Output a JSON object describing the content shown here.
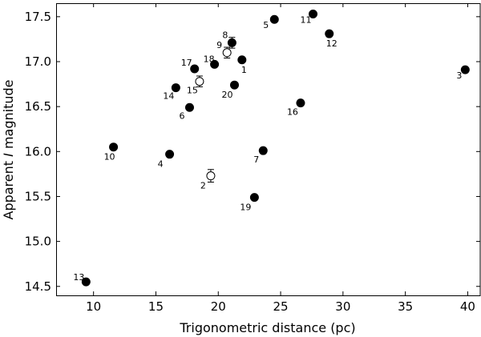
{
  "chart_data": {
    "type": "scatter",
    "xlabel": "Trigonometric distance (pc)",
    "ylabel_prefix": "Apparent ",
    "ylabel_var": "I",
    "ylabel_suffix": " magnitude",
    "xlim": [
      7,
      41
    ],
    "ylim": [
      14.4,
      17.65
    ],
    "xticks": [
      10,
      15,
      20,
      25,
      30,
      35,
      40
    ],
    "yticks": [
      14.5,
      15.0,
      15.5,
      16.0,
      16.5,
      17.0,
      17.5
    ],
    "xtick_labels": [
      "10",
      "15",
      "20",
      "25",
      "30",
      "35",
      "40"
    ],
    "ytick_labels": [
      "14.5",
      "15.0",
      "15.5",
      "16.0",
      "16.5",
      "17.0",
      "17.5"
    ],
    "grid": false,
    "points": [
      {
        "label": "1",
        "x": 21.9,
        "y": 17.02,
        "filled": true
      },
      {
        "label": "2",
        "x": 19.4,
        "y": 15.73,
        "filled": false,
        "yerr": 0.07
      },
      {
        "label": "3",
        "x": 39.8,
        "y": 16.91,
        "filled": true
      },
      {
        "label": "4",
        "x": 16.1,
        "y": 15.97,
        "filled": true
      },
      {
        "label": "5",
        "x": 24.5,
        "y": 17.47,
        "filled": true
      },
      {
        "label": "6",
        "x": 17.7,
        "y": 16.49,
        "filled": true
      },
      {
        "label": "7",
        "x": 23.6,
        "y": 16.01,
        "filled": true
      },
      {
        "label": "8",
        "x": 21.1,
        "y": 17.21,
        "filled": true,
        "yerr": 0.06
      },
      {
        "label": "9",
        "x": 20.7,
        "y": 17.1,
        "filled": false,
        "yerr": 0.06
      },
      {
        "label": "10",
        "x": 11.6,
        "y": 16.05,
        "filled": true
      },
      {
        "label": "11",
        "x": 27.6,
        "y": 17.53,
        "filled": true
      },
      {
        "label": "12",
        "x": 28.9,
        "y": 17.31,
        "filled": true
      },
      {
        "label": "13",
        "x": 9.4,
        "y": 14.55,
        "filled": true
      },
      {
        "label": "14",
        "x": 16.6,
        "y": 16.71,
        "filled": true
      },
      {
        "label": "15",
        "x": 18.5,
        "y": 16.78,
        "filled": false,
        "yerr": 0.06
      },
      {
        "label": "16",
        "x": 26.6,
        "y": 16.54,
        "filled": true
      },
      {
        "label": "17",
        "x": 18.1,
        "y": 16.92,
        "filled": true
      },
      {
        "label": "18",
        "x": 19.7,
        "y": 16.97,
        "filled": true
      },
      {
        "label": "19",
        "x": 22.9,
        "y": 15.49,
        "filled": true
      },
      {
        "label": "20",
        "x": 21.3,
        "y": 16.74,
        "filled": true
      }
    ]
  }
}
